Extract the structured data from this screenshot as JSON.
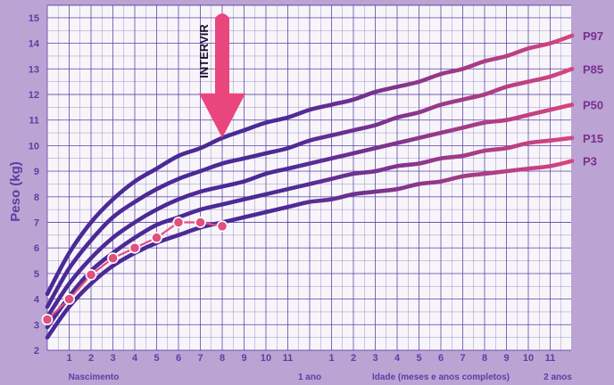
{
  "chart_data": {
    "type": "line",
    "ylabel": "Peso (kg)",
    "xlabel": "Idade (meses e anos completos)",
    "ylim": [
      1.5,
      15.5
    ],
    "xlim": [
      0,
      23.5
    ],
    "y_ticks": [
      "2",
      "3",
      "4",
      "5",
      "6",
      "7",
      "8",
      "9",
      "10",
      "11",
      "12",
      "13",
      "14",
      "15"
    ],
    "x_ticks_first_year": [
      "1",
      "2",
      "3",
      "4",
      "5",
      "6",
      "7",
      "8",
      "9",
      "10",
      "11"
    ],
    "x_ticks_second_year": [
      "1",
      "2",
      "3",
      "4",
      "5",
      "6",
      "7",
      "8",
      "9",
      "10",
      "11"
    ],
    "x_landmarks": {
      "birth": "Nascimento",
      "one_year": "1 ano",
      "two_years": "2 anos"
    },
    "annotation": {
      "text": "INTERVIR",
      "x": 8,
      "y_from": 15.2,
      "y_to": 10.3
    },
    "x": [
      0,
      1,
      2,
      3,
      4,
      5,
      6,
      7,
      8,
      9,
      10,
      11,
      12,
      13,
      14,
      15,
      16,
      17,
      18,
      19,
      20,
      21,
      22,
      23,
      24
    ],
    "series": [
      {
        "name": "P97",
        "values": [
          4.2,
          5.8,
          7.0,
          7.9,
          8.6,
          9.1,
          9.6,
          9.9,
          10.3,
          10.6,
          10.9,
          11.1,
          11.4,
          11.6,
          11.8,
          12.1,
          12.3,
          12.5,
          12.8,
          13.0,
          13.3,
          13.5,
          13.8,
          14.0,
          14.3
        ]
      },
      {
        "name": "P85",
        "values": [
          3.7,
          5.2,
          6.3,
          7.2,
          7.8,
          8.3,
          8.7,
          9.0,
          9.3,
          9.5,
          9.7,
          9.9,
          10.2,
          10.4,
          10.6,
          10.8,
          11.1,
          11.3,
          11.6,
          11.8,
          12.0,
          12.3,
          12.5,
          12.7,
          13.0
        ]
      },
      {
        "name": "P50",
        "values": [
          3.3,
          4.6,
          5.6,
          6.4,
          7.0,
          7.5,
          7.9,
          8.2,
          8.4,
          8.6,
          8.9,
          9.1,
          9.3,
          9.5,
          9.7,
          9.9,
          10.1,
          10.3,
          10.5,
          10.7,
          10.9,
          11.0,
          11.2,
          11.4,
          11.6
        ]
      },
      {
        "name": "P15",
        "values": [
          2.9,
          4.1,
          5.1,
          5.8,
          6.4,
          6.9,
          7.2,
          7.5,
          7.7,
          7.9,
          8.1,
          8.3,
          8.5,
          8.7,
          8.9,
          9.0,
          9.2,
          9.3,
          9.5,
          9.6,
          9.8,
          9.9,
          10.1,
          10.2,
          10.3
        ]
      },
      {
        "name": "P3",
        "values": [
          2.5,
          3.7,
          4.6,
          5.3,
          5.8,
          6.2,
          6.5,
          6.8,
          7.0,
          7.2,
          7.4,
          7.6,
          7.8,
          7.9,
          8.1,
          8.2,
          8.3,
          8.5,
          8.6,
          8.8,
          8.9,
          9.0,
          9.1,
          9.2,
          9.4
        ]
      }
    ],
    "child_points": {
      "x": [
        0,
        1,
        2,
        3,
        4,
        5,
        6,
        7,
        8
      ],
      "values": [
        3.2,
        4.0,
        4.95,
        5.6,
        6.0,
        6.4,
        7.0,
        7.0,
        6.85
      ]
    },
    "colors": {
      "background": "#bba3d4",
      "plot_background": "#f7f5fa",
      "grid": "#5b3fa0",
      "curve_start": "#4b2a96",
      "curve_end": "#d6457e",
      "child": "#e1507f",
      "arrow": "#e9467d"
    }
  }
}
